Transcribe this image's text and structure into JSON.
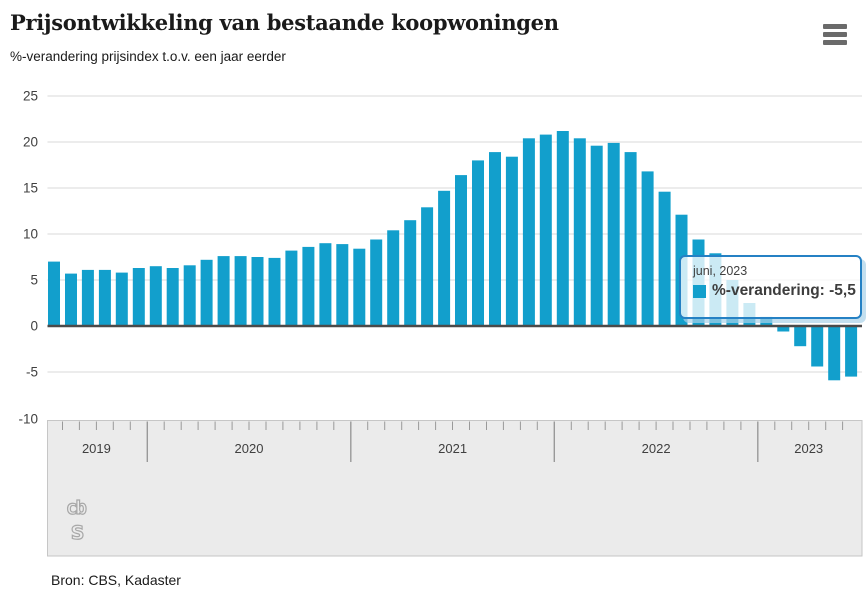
{
  "header": {
    "title": "Prijsontwikkeling van bestaande koopwoningen",
    "subtitle": "%-verandering prijsindex t.o.v. een jaar eerder"
  },
  "menu": {
    "icon": "hamburger-icon"
  },
  "tooltip": {
    "date_label": "juni, 2023",
    "series_label": "%-verandering",
    "value": "-5,5",
    "value_line": "%-verandering: -5,5"
  },
  "source": {
    "label": "Bron: CBS, Kadaster"
  },
  "branding": {
    "logo": "cbs-logo",
    "logo_text_top": "cb",
    "logo_text_bottom": "s"
  },
  "colors": {
    "bar": "#129fcc",
    "band": "#ebebeb",
    "band_border": "#c6c6c6",
    "grid": "#e0e0e0",
    "zero_line": "#4a4a4a",
    "tick": "#999999",
    "axis_text": "#404040",
    "tooltip_border": "#2581c4",
    "logo_stroke": "#a8a8a8"
  },
  "chart_data": {
    "type": "bar",
    "title": "Prijsontwikkeling van bestaande koopwoningen",
    "ylabel": "%-verandering prijsindex t.o.v. een jaar eerder",
    "ylim": [
      -10,
      25
    ],
    "ytick_step": 5,
    "yticks": [
      25,
      20,
      15,
      10,
      5,
      0,
      -5,
      -10
    ],
    "grid": true,
    "legend_position": "tooltip",
    "year_labels": [
      "2019",
      "2020",
      "2021",
      "2022",
      "2023"
    ],
    "x": [
      "2019-07",
      "2019-08",
      "2019-09",
      "2019-10",
      "2019-11",
      "2019-12",
      "2020-01",
      "2020-02",
      "2020-03",
      "2020-04",
      "2020-05",
      "2020-06",
      "2020-07",
      "2020-08",
      "2020-09",
      "2020-10",
      "2020-11",
      "2020-12",
      "2021-01",
      "2021-02",
      "2021-03",
      "2021-04",
      "2021-05",
      "2021-06",
      "2021-07",
      "2021-08",
      "2021-09",
      "2021-10",
      "2021-11",
      "2021-12",
      "2022-01",
      "2022-02",
      "2022-03",
      "2022-04",
      "2022-05",
      "2022-06",
      "2022-07",
      "2022-08",
      "2022-09",
      "2022-10",
      "2022-11",
      "2022-12",
      "2023-01",
      "2023-02",
      "2023-03",
      "2023-04",
      "2023-05",
      "2023-06"
    ],
    "values": [
      7.0,
      5.7,
      6.1,
      6.1,
      5.8,
      6.3,
      6.5,
      6.3,
      6.6,
      7.2,
      7.6,
      7.6,
      7.5,
      7.4,
      8.2,
      8.6,
      9.0,
      8.9,
      8.4,
      9.4,
      10.4,
      11.5,
      12.9,
      14.7,
      16.4,
      18.0,
      18.9,
      18.4,
      20.4,
      20.8,
      21.2,
      20.4,
      19.6,
      19.9,
      18.9,
      16.8,
      14.6,
      12.1,
      9.4,
      7.9,
      5.0,
      2.5,
      1.0,
      -0.6,
      -2.2,
      -4.4,
      -5.9,
      -5.5
    ],
    "highlight": {
      "x": "2023-06",
      "label": "juni, 2023",
      "value": -5.5
    }
  }
}
